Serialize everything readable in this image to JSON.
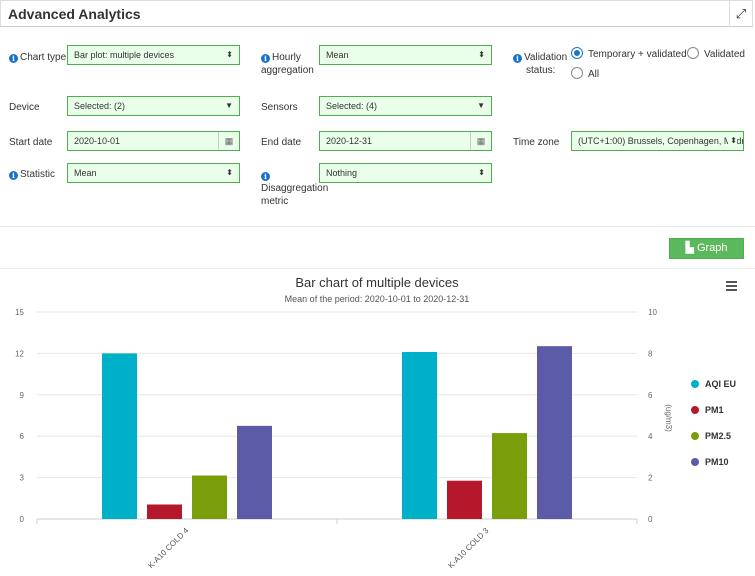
{
  "header": {
    "title": "Advanced Analytics",
    "expand_icon": "expand-icon"
  },
  "form": {
    "chart_type": {
      "label": "Chart type",
      "value": "Bar plot: multiple devices"
    },
    "hourly_aggregation": {
      "label_line1": "Hourly",
      "label_line2": "aggregation",
      "value": "Mean"
    },
    "validation": {
      "label_line1": "Validation",
      "label_line2": "status:",
      "options": [
        {
          "label": "Temporary + validated",
          "selected": true
        },
        {
          "label": "Validated",
          "selected": false
        },
        {
          "label": "All",
          "selected": false
        }
      ]
    },
    "device": {
      "label": "Device",
      "value": "Selected: (2)"
    },
    "sensors": {
      "label": "Sensors",
      "value": "Selected: (4)"
    },
    "start_date": {
      "label": "Start date",
      "value": "2020-10-01"
    },
    "end_date": {
      "label": "End date",
      "value": "2020-12-31"
    },
    "time_zone": {
      "label": "Time zone",
      "value": "(UTC+1:00) Brussels, Copenhagen, Madr"
    },
    "statistic": {
      "label": "Statistic",
      "value": "Mean"
    },
    "disaggregation": {
      "label_line1": "Disaggregation",
      "label_line2": "metric",
      "value": "Nothing"
    }
  },
  "graph_button": {
    "label": "Graph",
    "icon": "area-chart-icon"
  },
  "chart_data": {
    "type": "bar",
    "title": "Bar chart of multiple devices",
    "subtitle": "Mean of the period: 2020-10-01 to 2020-12-31",
    "categories": [
      "K-A10 COLD 4",
      "K-A10 COLD 3"
    ],
    "left_axis": {
      "ylim": [
        0,
        15
      ],
      "ticks": [
        "0",
        "3",
        "6",
        "9",
        "12",
        "15"
      ]
    },
    "right_axis": {
      "label": "(ug/m3)",
      "ylim": [
        0,
        10
      ],
      "ticks": [
        "0",
        "2",
        "4",
        "6",
        "8",
        "10"
      ]
    },
    "series": [
      {
        "name": "AQI EU",
        "color": "#00b0c8",
        "axis": "left",
        "values": [
          12,
          12.1
        ]
      },
      {
        "name": "PM1",
        "color": "#b5182a",
        "axis": "right",
        "values": [
          0.7,
          1.85
        ]
      },
      {
        "name": "PM2.5",
        "color": "#7a9e0a",
        "axis": "right",
        "values": [
          2.1,
          4.15
        ]
      },
      {
        "name": "PM10",
        "color": "#5b5ba8",
        "axis": "right",
        "values": [
          4.5,
          8.35
        ]
      }
    ],
    "legend_position": "right",
    "grid": true,
    "menu_icon": "hamburger-menu-icon"
  }
}
